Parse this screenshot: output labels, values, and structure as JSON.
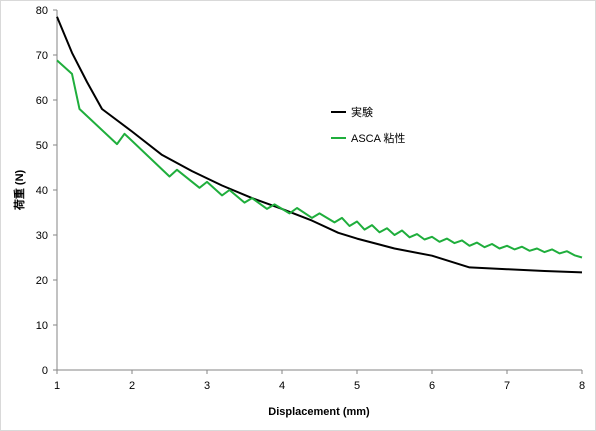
{
  "chart_data": {
    "type": "line",
    "title": "",
    "xlabel": "Displacement (mm)",
    "ylabel": "荷重 (N)",
    "xlim": [
      1,
      8
    ],
    "ylim": [
      0,
      80
    ],
    "xticks": [
      1,
      2,
      3,
      4,
      5,
      6,
      7,
      8
    ],
    "yticks": [
      0,
      10,
      20,
      30,
      40,
      50,
      60,
      70,
      80
    ],
    "grid": false,
    "legend_position": "right",
    "series": [
      {
        "name": "実験",
        "color": "#000000",
        "x": [
          1.0,
          1.2,
          1.4,
          1.6,
          2.0,
          2.4,
          2.8,
          3.2,
          3.6,
          4.0,
          4.4,
          4.75,
          5.0,
          5.5,
          6.0,
          6.5,
          7.0,
          7.5,
          8.0
        ],
        "y": [
          78.5,
          70.5,
          64.0,
          58.0,
          53.0,
          47.8,
          44.2,
          41.0,
          38.2,
          35.8,
          33.2,
          30.5,
          29.2,
          27.0,
          25.4,
          22.8,
          22.4,
          22.0,
          21.7
        ]
      },
      {
        "name": "ASCA 粘性",
        "color": "#1fae3c",
        "x": [
          1.0,
          1.2,
          1.3,
          1.8,
          1.9,
          2.5,
          2.6,
          2.9,
          3.0,
          3.2,
          3.3,
          3.5,
          3.6,
          3.8,
          3.9,
          4.1,
          4.2,
          4.4,
          4.5,
          4.7,
          4.8,
          4.9,
          5.0,
          5.1,
          5.2,
          5.3,
          5.4,
          5.5,
          5.6,
          5.7,
          5.8,
          5.9,
          6.0,
          6.1,
          6.2,
          6.3,
          6.4,
          6.5,
          6.6,
          6.7,
          6.8,
          6.9,
          7.0,
          7.1,
          7.2,
          7.3,
          7.4,
          7.5,
          7.6,
          7.7,
          7.8,
          7.9,
          8.0
        ],
        "y": [
          68.8,
          65.8,
          58.0,
          50.2,
          52.5,
          43.0,
          44.5,
          40.5,
          41.8,
          38.8,
          40.0,
          37.2,
          38.2,
          35.8,
          36.8,
          34.8,
          36.0,
          33.8,
          34.8,
          32.8,
          33.8,
          32.0,
          33.0,
          31.2,
          32.2,
          30.6,
          31.5,
          30.0,
          31.0,
          29.5,
          30.2,
          29.0,
          29.6,
          28.5,
          29.2,
          28.2,
          28.8,
          27.6,
          28.3,
          27.3,
          28.0,
          27.0,
          27.6,
          26.8,
          27.4,
          26.5,
          27.0,
          26.2,
          26.8,
          25.9,
          26.4,
          25.5,
          25.0
        ]
      }
    ]
  }
}
